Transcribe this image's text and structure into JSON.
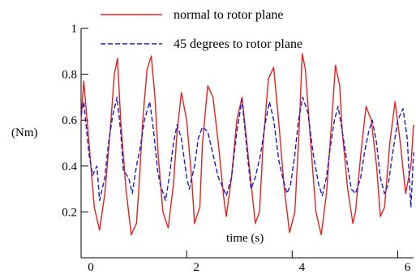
{
  "chart_data": {
    "type": "line",
    "title": "",
    "xlabel": "time (s)",
    "ylabel": "(Nm)",
    "xlim": [
      0,
      6.3
    ],
    "ylim": [
      0,
      1.0
    ],
    "xticks": [
      0,
      2,
      4,
      6
    ],
    "xtick_labels": [
      "0",
      "2",
      "4",
      "6"
    ],
    "yticks": [
      0.2,
      0.4,
      0.6,
      0.8,
      1.0
    ],
    "ytick_labels": [
      "0.2",
      "0.4",
      "0.6",
      "0.8",
      "1"
    ],
    "grid": false,
    "legend_position": "top",
    "series": [
      {
        "name": "normal to rotor plane",
        "color": "#e8201c",
        "style": "solid",
        "x": [
          0.0,
          0.05,
          0.15,
          0.25,
          0.35,
          0.45,
          0.55,
          0.63,
          0.69,
          0.75,
          0.85,
          0.95,
          1.05,
          1.1,
          1.17,
          1.25,
          1.33,
          1.4,
          1.46,
          1.55,
          1.65,
          1.75,
          1.82,
          1.9,
          2.0,
          2.1,
          2.15,
          2.25,
          2.3,
          2.4,
          2.5,
          2.6,
          2.7,
          2.75,
          2.85,
          2.95,
          3.05,
          3.2,
          3.3,
          3.38,
          3.45,
          3.55,
          3.65,
          3.75,
          3.85,
          3.95,
          4.05,
          4.13,
          4.19,
          4.25,
          4.35,
          4.45,
          4.55,
          4.65,
          4.75,
          4.82,
          4.9,
          4.95,
          5.05,
          5.15,
          5.2,
          5.3,
          5.4,
          5.5,
          5.6,
          5.67,
          5.75,
          5.85,
          5.95,
          6.05,
          6.15,
          6.25,
          6.3
        ],
        "y": [
          0.6,
          0.77,
          0.5,
          0.22,
          0.12,
          0.28,
          0.55,
          0.8,
          0.87,
          0.6,
          0.3,
          0.1,
          0.15,
          0.32,
          0.6,
          0.82,
          0.88,
          0.7,
          0.45,
          0.2,
          0.13,
          0.32,
          0.55,
          0.72,
          0.6,
          0.33,
          0.15,
          0.22,
          0.5,
          0.75,
          0.7,
          0.5,
          0.27,
          0.18,
          0.35,
          0.6,
          0.7,
          0.37,
          0.15,
          0.2,
          0.5,
          0.78,
          0.83,
          0.58,
          0.3,
          0.11,
          0.2,
          0.55,
          0.89,
          0.82,
          0.5,
          0.2,
          0.1,
          0.28,
          0.6,
          0.84,
          0.75,
          0.55,
          0.3,
          0.15,
          0.2,
          0.45,
          0.66,
          0.6,
          0.4,
          0.18,
          0.22,
          0.5,
          0.68,
          0.5,
          0.28,
          0.4,
          0.58
        ]
      },
      {
        "name": "45 degrees to rotor plane",
        "color": "#1a1acc",
        "style": "dashed",
        "x": [
          0.0,
          0.05,
          0.15,
          0.22,
          0.3,
          0.35,
          0.45,
          0.52,
          0.6,
          0.68,
          0.75,
          0.8,
          0.9,
          0.97,
          1.05,
          1.12,
          1.2,
          1.3,
          1.37,
          1.45,
          1.5,
          1.6,
          1.67,
          1.75,
          1.82,
          1.9,
          2.0,
          2.05,
          2.15,
          2.22,
          2.3,
          2.4,
          2.5,
          2.6,
          2.7,
          2.75,
          2.85,
          2.95,
          3.05,
          3.15,
          3.22,
          3.3,
          3.4,
          3.5,
          3.57,
          3.65,
          3.75,
          3.82,
          3.9,
          3.97,
          4.05,
          4.12,
          4.2,
          4.3,
          4.4,
          4.5,
          4.57,
          4.65,
          4.72,
          4.8,
          4.87,
          4.95,
          5.05,
          5.12,
          5.2,
          5.3,
          5.37,
          5.45,
          5.52,
          5.6,
          5.67,
          5.75,
          5.82,
          5.9,
          6.0,
          6.1,
          6.18,
          6.25,
          6.3
        ],
        "y": [
          0.62,
          0.68,
          0.45,
          0.36,
          0.4,
          0.25,
          0.35,
          0.5,
          0.62,
          0.7,
          0.55,
          0.38,
          0.35,
          0.28,
          0.4,
          0.48,
          0.6,
          0.68,
          0.56,
          0.38,
          0.32,
          0.25,
          0.35,
          0.5,
          0.58,
          0.52,
          0.35,
          0.3,
          0.4,
          0.52,
          0.57,
          0.55,
          0.45,
          0.35,
          0.3,
          0.27,
          0.35,
          0.55,
          0.69,
          0.45,
          0.3,
          0.35,
          0.45,
          0.6,
          0.68,
          0.6,
          0.42,
          0.35,
          0.28,
          0.32,
          0.45,
          0.6,
          0.7,
          0.63,
          0.45,
          0.32,
          0.27,
          0.35,
          0.48,
          0.6,
          0.66,
          0.55,
          0.4,
          0.3,
          0.28,
          0.35,
          0.46,
          0.55,
          0.6,
          0.5,
          0.35,
          0.28,
          0.32,
          0.45,
          0.6,
          0.65,
          0.52,
          0.22,
          0.46
        ]
      }
    ]
  }
}
